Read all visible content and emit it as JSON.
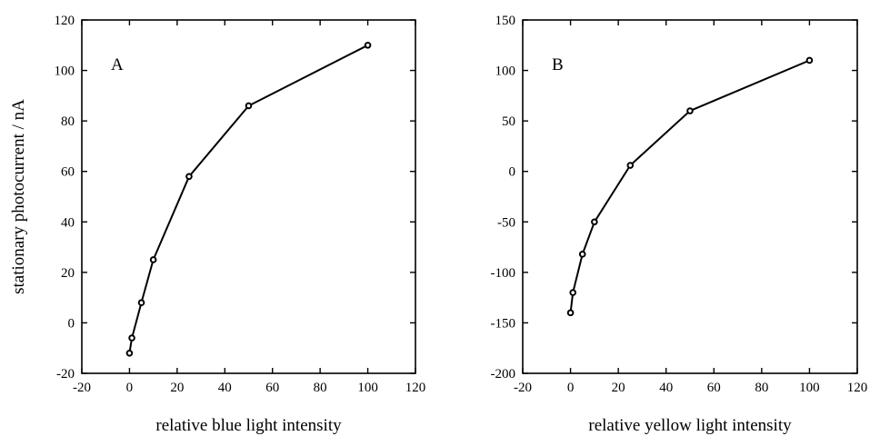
{
  "chart_data": [
    {
      "type": "line",
      "panel_label": "A",
      "xlabel": "relative blue light intensity",
      "ylabel": "stationary photocurrent / nA",
      "xlim": [
        -20,
        120
      ],
      "ylim": [
        -20,
        120
      ],
      "xticks": [
        -20,
        0,
        20,
        40,
        60,
        80,
        100,
        120
      ],
      "yticks": [
        -20,
        0,
        20,
        40,
        60,
        80,
        100,
        120
      ],
      "grid": false,
      "series": [
        {
          "x": [
            0,
            1,
            5,
            10,
            25,
            50,
            100
          ],
          "y": [
            -12,
            -6,
            8,
            25,
            58,
            86,
            110
          ]
        }
      ]
    },
    {
      "type": "line",
      "panel_label": "B",
      "xlabel": "relative yellow light intensity",
      "ylabel": "",
      "xlim": [
        -20,
        120
      ],
      "ylim": [
        -200,
        150
      ],
      "xticks": [
        -20,
        0,
        20,
        40,
        60,
        80,
        100,
        120
      ],
      "yticks": [
        -200,
        -150,
        -100,
        -50,
        0,
        50,
        100,
        150
      ],
      "grid": false,
      "series": [
        {
          "x": [
            0,
            1,
            5,
            10,
            25,
            50,
            100
          ],
          "y": [
            -140,
            -120,
            -82,
            -50,
            6,
            60,
            110
          ]
        }
      ]
    }
  ]
}
